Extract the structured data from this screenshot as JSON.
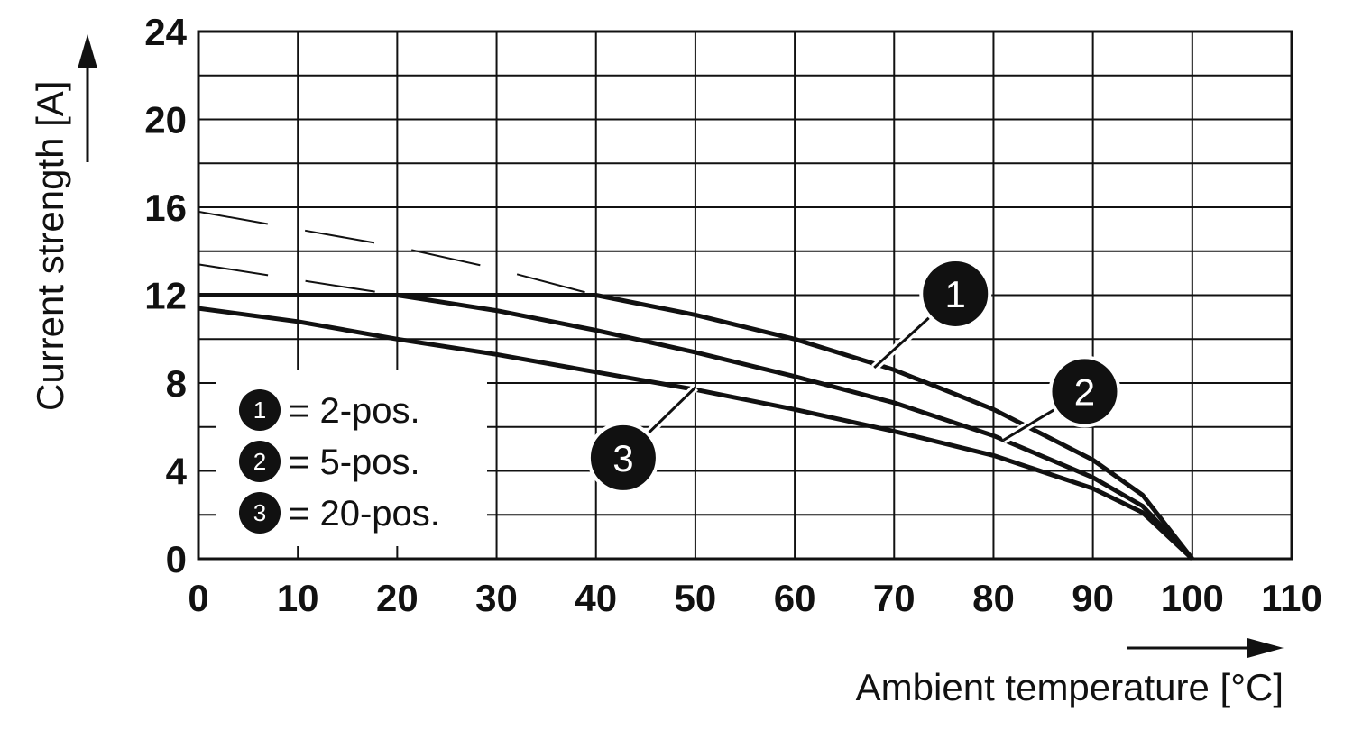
{
  "chart_data": {
    "type": "line",
    "xlabel": "Ambient temperature [°C]",
    "ylabel": "Current strength [A]",
    "xlim": [
      0,
      110
    ],
    "ylim": [
      0,
      24
    ],
    "x_ticks": [
      "0",
      "10",
      "20",
      "30",
      "40",
      "50",
      "60",
      "70",
      "80",
      "90",
      "100",
      "110"
    ],
    "y_ticks": [
      "0",
      "4",
      "8",
      "12",
      "16",
      "20",
      "24"
    ],
    "grid": true,
    "x_grid_step": 10,
    "y_grid_step": 2,
    "legend_position": "bottom-left",
    "line_color": "#111111",
    "series": [
      {
        "name": "2-pos.",
        "marker": "1",
        "limit_current": 12,
        "values": [
          [
            0,
            12
          ],
          [
            10,
            12
          ],
          [
            20,
            12
          ],
          [
            30,
            12
          ],
          [
            40,
            12
          ],
          [
            50,
            11.1
          ],
          [
            60,
            10.0
          ],
          [
            70,
            8.6
          ],
          [
            80,
            6.8
          ],
          [
            90,
            4.5
          ],
          [
            95,
            2.9
          ],
          [
            100,
            0
          ]
        ],
        "dashed_extension": [
          [
            0,
            15.8
          ],
          [
            10,
            15.0
          ],
          [
            20,
            14.2
          ],
          [
            30,
            13.2
          ],
          [
            40,
            12
          ]
        ]
      },
      {
        "name": "5-pos.",
        "marker": "2",
        "values": [
          [
            0,
            13.4
          ],
          [
            20,
            12
          ],
          [
            30,
            11.3
          ],
          [
            40,
            10.4
          ],
          [
            50,
            9.4
          ],
          [
            60,
            8.3
          ],
          [
            70,
            7.1
          ],
          [
            80,
            5.6
          ],
          [
            90,
            3.7
          ],
          [
            95,
            2.4
          ],
          [
            100,
            0
          ]
        ],
        "dashed_segment_to_x": 20
      },
      {
        "name": "20-pos.",
        "marker": "3",
        "values": [
          [
            0,
            11.4
          ],
          [
            10,
            10.8
          ],
          [
            20,
            10.0
          ],
          [
            30,
            9.3
          ],
          [
            40,
            8.5
          ],
          [
            50,
            7.7
          ],
          [
            60,
            6.8
          ],
          [
            70,
            5.8
          ],
          [
            80,
            4.7
          ],
          [
            90,
            3.2
          ],
          [
            95,
            2.1
          ],
          [
            100,
            0
          ]
        ]
      }
    ],
    "legend": [
      {
        "marker": "1",
        "label": "= 2-pos."
      },
      {
        "marker": "2",
        "label": "= 5-pos."
      },
      {
        "marker": "3",
        "label": "= 20-pos."
      }
    ],
    "callouts": [
      {
        "marker": "1",
        "x": 68,
        "y": 8.7
      },
      {
        "marker": "2",
        "x": 81,
        "y": 5.4
      },
      {
        "marker": "3",
        "x": 50,
        "y": 7.8
      }
    ]
  }
}
